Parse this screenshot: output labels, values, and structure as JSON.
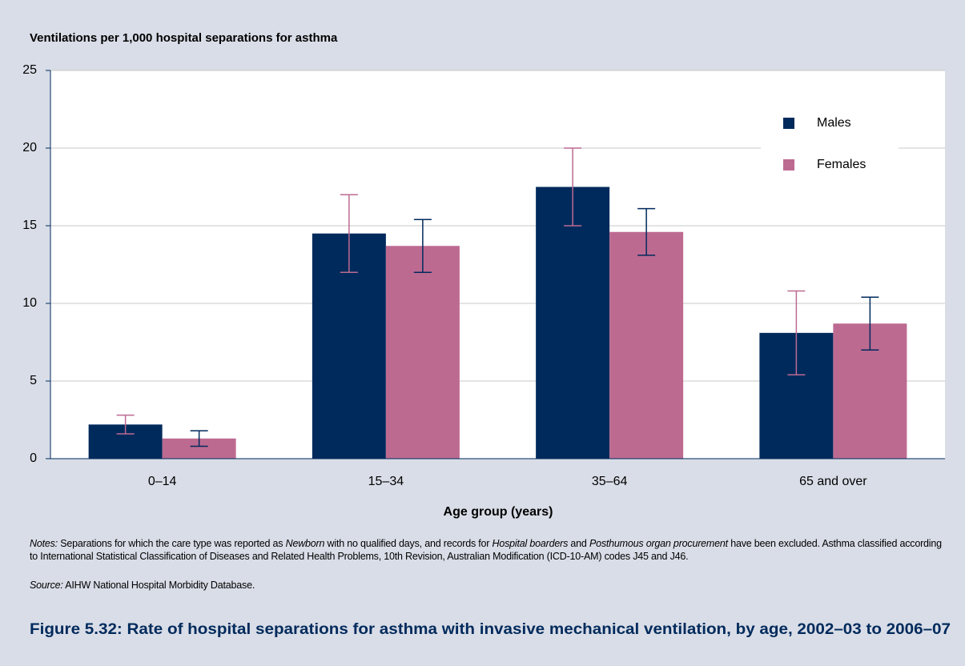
{
  "chart_data": {
    "type": "bar",
    "title": "Ventilations per 1,000 hospital separations for asthma",
    "x_label": "Age group (years)",
    "categories": [
      "0–14",
      "15–34",
      "35–64",
      "65 and over"
    ],
    "series": [
      {
        "name": "Males",
        "color": "#002a5c",
        "error_color": "#bd6a91",
        "values": [
          2.2,
          14.5,
          17.5,
          8.1
        ],
        "errors": [
          0.6,
          2.5,
          2.5,
          2.7
        ]
      },
      {
        "name": "Females",
        "color": "#bd6a91",
        "error_color": "#002a5c",
        "values": [
          1.3,
          13.7,
          14.6,
          8.7
        ],
        "errors": [
          0.5,
          1.7,
          1.5,
          1.7
        ]
      }
    ],
    "ylim": [
      0,
      25
    ],
    "yticks": [
      0,
      5,
      10,
      15,
      20,
      25
    ],
    "grid": true,
    "legend": "upper right"
  },
  "notes": {
    "label": "Notes:",
    "text": [
      " Separations for which the care type was reported as ",
      "Newborn",
      " with no qualified days, and records for ",
      "Hospital boarders",
      " and ",
      "Posthumous organ procurement",
      " have been excluded. Asthma classified according to International Statistical Classification of Diseases and Related Health Problems, 10th Revision, Australian Modification (ICD-10-AM) codes J45 and J46."
    ]
  },
  "source": {
    "label": "Source:",
    "text": " AIHW National Hospital Morbidity Database."
  },
  "figure_title": "Figure 5.32: Rate of hospital separations for asthma with invasive mechanical ventilation, by age, 2002–03 to 2006–07"
}
